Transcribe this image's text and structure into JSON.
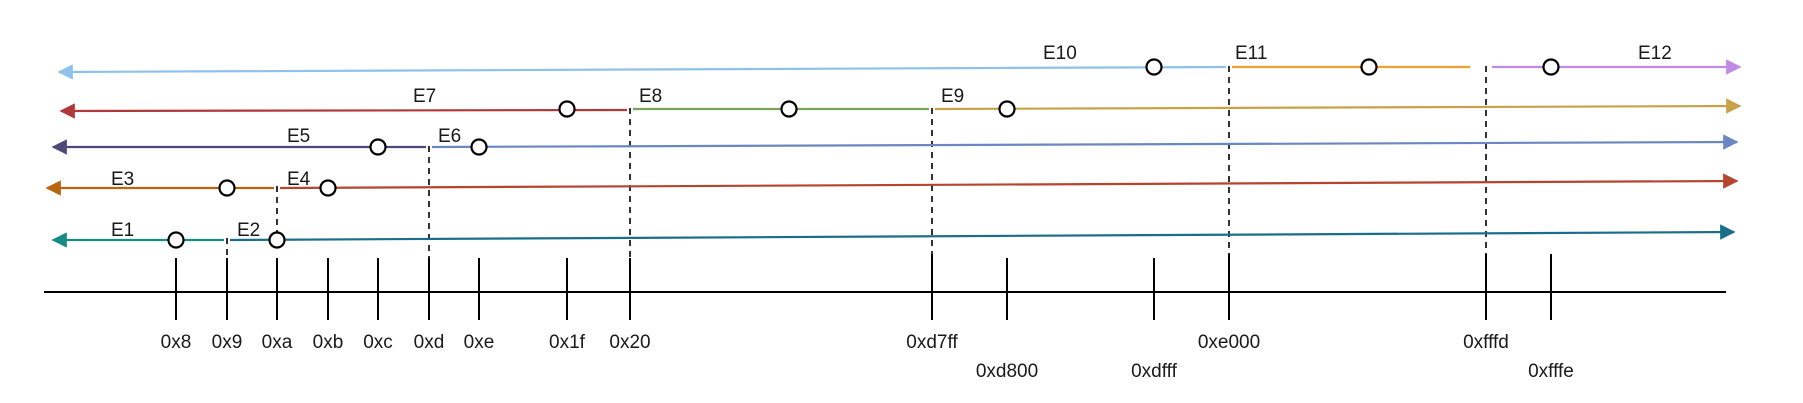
{
  "diagram": {
    "tick_labels": [
      "0x8",
      "0x9",
      "0xa",
      "0xb",
      "0xc",
      "0xd",
      "0xe",
      "0x1f",
      "0x20",
      "0xd7ff",
      "0xd800",
      "0xdfff",
      "0xe000",
      "0xfffd",
      "0xfffe"
    ],
    "edge_labels": [
      "E1",
      "E2",
      "E3",
      "E4",
      "E5",
      "E6",
      "E7",
      "E8",
      "E9",
      "E10",
      "E11",
      "E12"
    ],
    "colors": {
      "axis": "#000000",
      "row_e1_e2": "#1a6e8a",
      "row_e3_e4": "#b5452e",
      "row_e5_e6": "#6a87c2",
      "row_e7_e9": "#c8a24a",
      "e1": "#1a8a84",
      "e3": "#b8650f",
      "e5": "#4d4a78",
      "e7": "#b03838",
      "e8": "#7aa55a",
      "e10": "#8ec2ea",
      "e11": "#f0a030",
      "e12": "#c08ae8"
    }
  }
}
